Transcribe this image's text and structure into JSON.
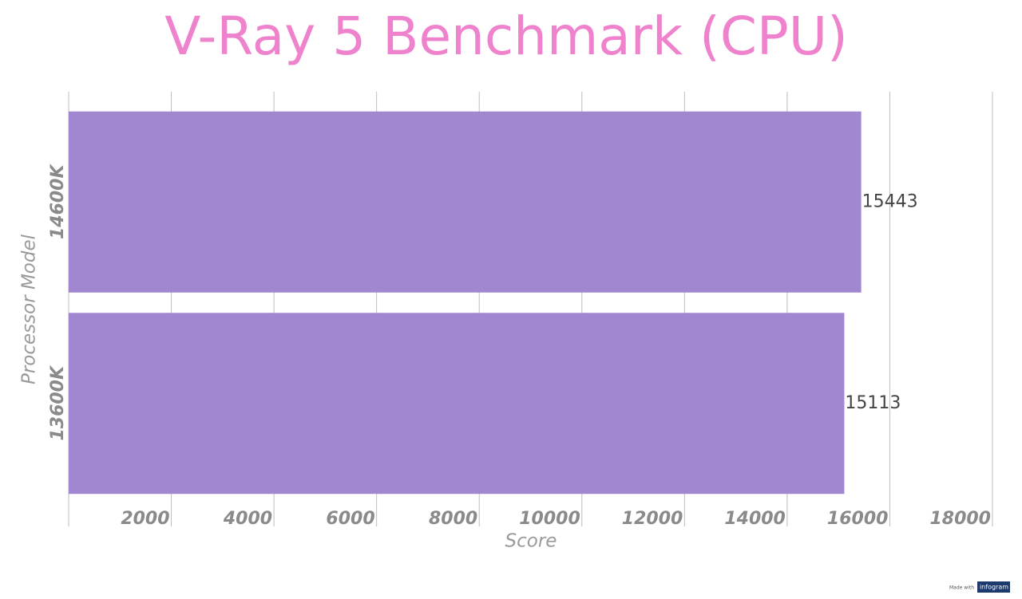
{
  "chart_data": {
    "type": "hbar",
    "title": "V-Ray 5 Benchmark (CPU)",
    "categories": [
      "14600K",
      "13600K"
    ],
    "values": [
      15443,
      15113
    ],
    "color": "#a087cf",
    "x_label": "Score",
    "y_label": "Processor Model",
    "xlim": [
      0,
      18000
    ],
    "xticks": [
      2000,
      4000,
      6000,
      8000,
      10000,
      12000,
      14000,
      16000,
      18000
    ],
    "grid": true,
    "credit_prefix": "Made with",
    "credit": "infogram"
  }
}
